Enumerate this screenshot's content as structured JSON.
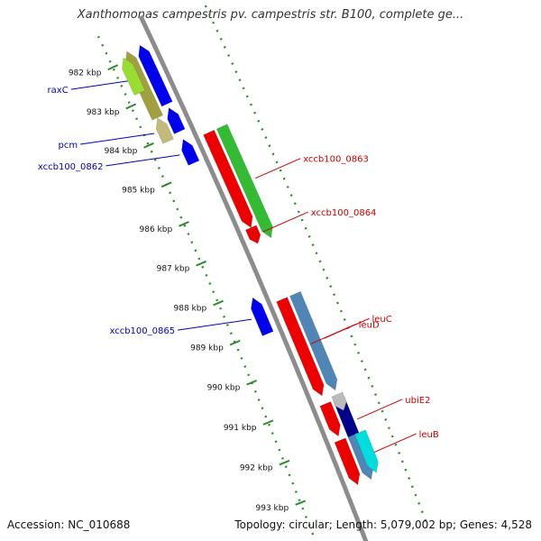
{
  "title": "Xanthomonas campestris pv. campestris str. B100, complete ge...",
  "footer": {
    "accession": "Accession: NC_010688",
    "topology": "Topology: circular; Length: 5,079,002 bp; Genes: 4,528"
  },
  "colors": {
    "backbone": "#8c8c8c",
    "tick": "#2e8b2e",
    "forward_label": "#cc0000",
    "reverse_label": "#0000bb",
    "blue": "#0000ee",
    "green": "#33bb33",
    "red": "#ee0000",
    "steelblue": "#4f86b6",
    "olive": "#a0a040",
    "khaki": "#c0bb7a",
    "lime": "#99dd33",
    "navy": "#000088",
    "gray": "#bbbbbb",
    "cyan": "#00dddd"
  },
  "scale": {
    "unit": "kbp",
    "ticks": [
      "982 kbp",
      "983 kbp",
      "984 kbp",
      "985 kbp",
      "986 kbp",
      "987 kbp",
      "988 kbp",
      "989 kbp",
      "990 kbp",
      "991 kbp",
      "992 kbp",
      "993 kbp"
    ]
  },
  "genes": {
    "forward": [
      {
        "name": "xccb100_0863",
        "start": 984.3,
        "end": 987.1,
        "ring": 1,
        "color": "green",
        "labeled": true
      },
      {
        "name": "xccb100_0864",
        "start": 986.7,
        "end": 987.1,
        "ring": 0,
        "color": "red",
        "labeled": true
      },
      {
        "name": "",
        "start": 984.3,
        "end": 986.7,
        "ring": 0,
        "color": "red",
        "labeled": false
      },
      {
        "name": "leuC",
        "start": 988.5,
        "end": 990.9,
        "ring": 1,
        "color": "steelblue",
        "labeled": true
      },
      {
        "name": "leuD",
        "start": 988.5,
        "end": 990.9,
        "ring": 0,
        "color": "red",
        "labeled": true
      },
      {
        "name": "ubiE2",
        "start": 991.1,
        "end": 992.3,
        "ring": 1,
        "color": "navy",
        "labeled": true
      },
      {
        "name": "",
        "start": 991.0,
        "end": 991.4,
        "ring": 1,
        "color": "gray",
        "labeled": false
      },
      {
        "name": "",
        "start": 991.1,
        "end": 991.9,
        "ring": 0,
        "color": "red",
        "labeled": false
      },
      {
        "name": "leuB",
        "start": 992.0,
        "end": 993.1,
        "ring": 1,
        "color": "steelblue",
        "labeled": true
      },
      {
        "name": "",
        "start": 992.0,
        "end": 993.0,
        "ring": 1.5,
        "color": "cyan",
        "labeled": false
      },
      {
        "name": "",
        "start": 992.0,
        "end": 993.1,
        "ring": 0,
        "color": "red",
        "labeled": false
      }
    ],
    "reverse": [
      {
        "name": "raxC",
        "start": 981.8,
        "end": 983.3,
        "ring": 0,
        "color": "blue",
        "labeled": true
      },
      {
        "name": "",
        "start": 981.8,
        "end": 983.5,
        "ring": 1,
        "color": "olive",
        "labeled": false
      },
      {
        "name": "",
        "start": 981.9,
        "end": 982.8,
        "ring": 1.4,
        "color": "lime",
        "labeled": false
      },
      {
        "name": "pcm",
        "start": 983.5,
        "end": 984.1,
        "ring": 1,
        "color": "khaki",
        "labeled": true
      },
      {
        "name": "",
        "start": 983.4,
        "end": 984.0,
        "ring": 0,
        "color": "blue",
        "labeled": false
      },
      {
        "name": "xccb100_0862",
        "start": 984.2,
        "end": 984.8,
        "ring": 0,
        "color": "blue",
        "labeled": true
      },
      {
        "name": "xccb100_0865",
        "start": 988.2,
        "end": 989.1,
        "ring": 0,
        "color": "blue",
        "labeled": true
      }
    ]
  }
}
